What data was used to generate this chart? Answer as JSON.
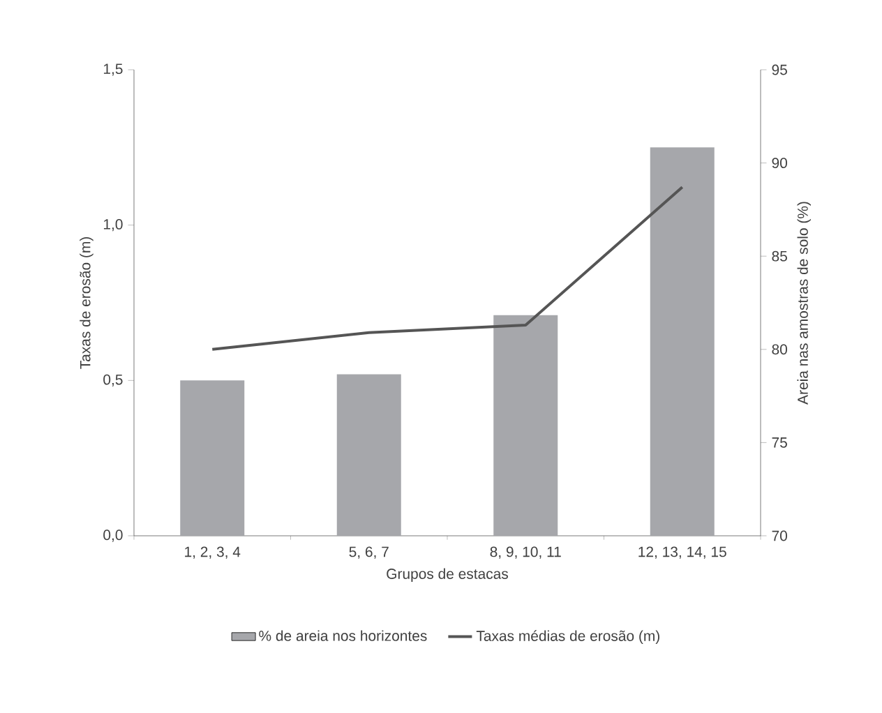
{
  "chart_data": {
    "type": "bar",
    "categories": [
      "1, 2, 3, 4",
      "5, 6, 7",
      "8, 9, 10, 11",
      "12, 13, 14, 15"
    ],
    "xlabel": "Grupos de estacas",
    "ylabel": "Taxas de erosão (m)",
    "y2label": "Areia nas amostras de solo (%)",
    "series": [
      {
        "name": "% de areia nos horizontes",
        "color": "#a6a7ab",
        "values": [
          0.5,
          0.52,
          0.71,
          1.25
        ]
      },
      {
        "name": "Taxas médias de erosão (m)",
        "type": "line",
        "axis": "y2",
        "color": "#555555",
        "values": [
          80.0,
          80.9,
          81.3,
          88.7
        ]
      }
    ],
    "ylim": [
      0,
      1.5
    ],
    "yticks": [
      {
        "value": 0,
        "label": "0,0"
      },
      {
        "value": 0.5,
        "label": "0,5"
      },
      {
        "value": 1.0,
        "label": "1,0"
      },
      {
        "value": 1.5,
        "label": "1,5"
      }
    ],
    "y2lim": [
      70,
      95
    ],
    "y2ticks": [
      70,
      75,
      80,
      85,
      90,
      95
    ],
    "grid": false,
    "legend": "bottom",
    "marker": "none"
  }
}
